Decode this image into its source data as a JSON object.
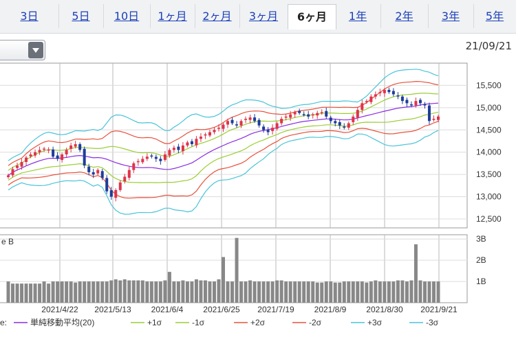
{
  "tabs": [
    {
      "label": "3日",
      "active": false
    },
    {
      "label": "5日",
      "active": false
    },
    {
      "label": "10日",
      "active": false
    },
    {
      "label": "1ヶ月",
      "active": false
    },
    {
      "label": "2ヶ月",
      "active": false
    },
    {
      "label": "3ヶ月",
      "active": false
    },
    {
      "label": "6ヶ月",
      "active": true
    },
    {
      "label": "1年",
      "active": false
    },
    {
      "label": "2年",
      "active": false
    },
    {
      "label": "3年",
      "active": false
    },
    {
      "label": "5年",
      "active": false
    }
  ],
  "date_label": "21/09/21",
  "volume_corner_label": "e B",
  "legend_prefix": "e:",
  "chart_data": {
    "type": "candlestick",
    "price_axis": {
      "ticks": [
        "15,500",
        "15,000",
        "14,500",
        "14,000",
        "13,500",
        "13,000",
        "12,500"
      ],
      "values": [
        15500,
        15000,
        14500,
        14000,
        13500,
        13000,
        12500
      ],
      "range": [
        12300,
        16000
      ]
    },
    "volume_axis": {
      "ticks": [
        "3B",
        "2B",
        "1B"
      ],
      "values": [
        3,
        2,
        1
      ],
      "range": [
        0,
        3.2
      ]
    },
    "x_labels": [
      "2021/4/22",
      "2021/5/13",
      "2021/6/4",
      "2021/6/25",
      "2021/7/19",
      "2021/8/9",
      "2021/8/30",
      "2021/9/21"
    ],
    "close_series": [
      13480,
      13620,
      13700,
      13780,
      13880,
      13950,
      14000,
      14050,
      14080,
      14060,
      13900,
      13850,
      13950,
      14050,
      14150,
      14180,
      14050,
      13700,
      13550,
      13500,
      13600,
      13420,
      13120,
      13000,
      13150,
      13320,
      13450,
      13600,
      13750,
      13800,
      13850,
      13900,
      13920,
      13850,
      13800,
      13950,
      14050,
      14100,
      14050,
      14150,
      14220,
      14180,
      14300,
      14350,
      14400,
      14450,
      14500,
      14550,
      14620,
      14700,
      14650,
      14600,
      14700,
      14750,
      14780,
      14700,
      14600,
      14500,
      14450,
      14550,
      14650,
      14750,
      14800,
      14850,
      14900,
      14880,
      14850,
      14800,
      14850,
      14880,
      14900,
      14800,
      14700,
      14650,
      14600,
      14550,
      14650,
      14800,
      14950,
      15100,
      15150,
      15250,
      15300,
      15350,
      15400,
      15350,
      15300,
      15250,
      15150,
      15100,
      15050,
      15150,
      15100,
      15050,
      14700,
      14750,
      14800
    ],
    "volume_series": [
      1.0,
      0.9,
      0.9,
      0.9,
      0.9,
      0.9,
      0.9,
      0.9,
      1.0,
      0.9,
      1.0,
      1.0,
      1.0,
      1.0,
      1.0,
      0.95,
      1.0,
      1.0,
      1.0,
      1.0,
      1.0,
      1.0,
      1.0,
      1.05,
      1.1,
      1.05,
      1.1,
      1.05,
      1.05,
      1.05,
      1.05,
      1.0,
      1.0,
      1.0,
      1.0,
      1.05,
      1.45,
      1.0,
      1.0,
      1.05,
      1.0,
      1.0,
      1.1,
      1.05,
      1.05,
      1.0,
      1.0,
      1.1,
      2.15,
      1.0,
      1.0,
      3.05,
      1.0,
      1.0,
      1.05,
      1.0,
      1.0,
      1.0,
      1.0,
      1.0,
      1.05,
      1.05,
      1.0,
      1.0,
      1.0,
      1.0,
      1.0,
      1.0,
      1.0,
      0.95,
      0.95,
      1.0,
      1.0,
      0.95,
      0.95,
      1.0,
      1.0,
      1.0,
      1.0,
      1.0,
      0.95,
      1.0,
      1.05,
      1.0,
      1.0,
      1.0,
      1.0,
      1.05,
      1.05,
      1.0,
      1.05,
      2.75,
      1.05,
      1.0,
      1.0,
      1.0,
      1.0
    ],
    "legend": [
      {
        "label": "単純移動平均(20)",
        "color": "#8a2be2"
      },
      {
        "label": "+1σ",
        "color": "#9acd32"
      },
      {
        "label": "-1σ",
        "color": "#9acd32"
      },
      {
        "label": "+2σ",
        "color": "#e8503a"
      },
      {
        "label": "-2σ",
        "color": "#e8503a"
      },
      {
        "label": "+3σ",
        "color": "#48c4d8"
      },
      {
        "label": "-3σ",
        "color": "#48c4d8"
      }
    ],
    "colors": {
      "up": "#e0334a",
      "down": "#1f3c9a",
      "grid": "#b8b8b8",
      "volume": "#888888",
      "ma": "#8a2be2",
      "sigma1": "#9acd32",
      "sigma2": "#e8503a",
      "sigma3": "#48c4d8"
    }
  }
}
